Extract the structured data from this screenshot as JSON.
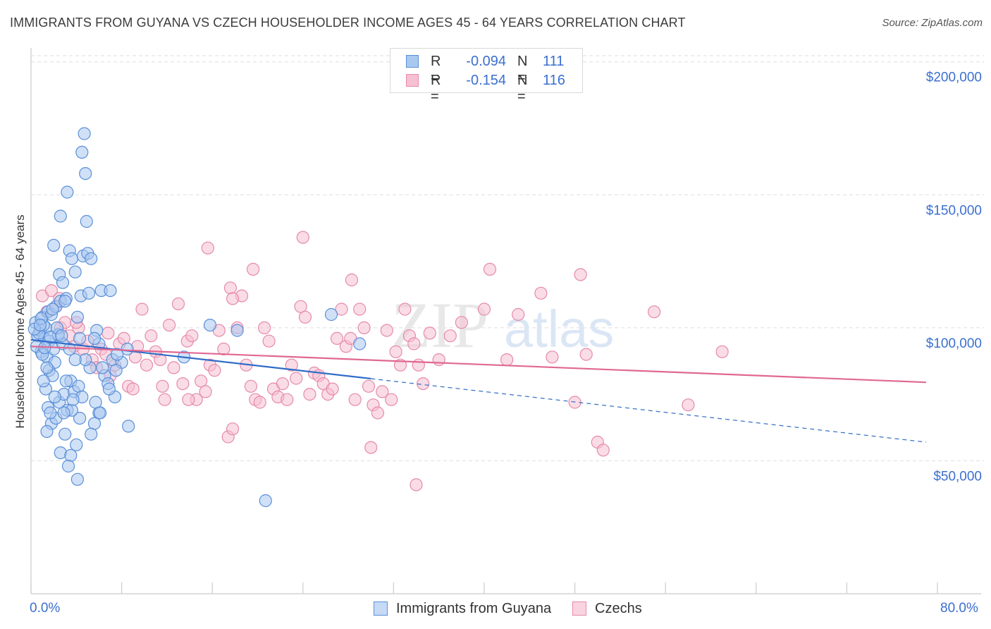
{
  "title": "IMMIGRANTS FROM GUYANA VS CZECH HOUSEHOLDER INCOME AGES 45 - 64 YEARS CORRELATION CHART",
  "source": "Source: ZipAtlas.com",
  "watermark": {
    "zip": "ZIP",
    "atlas": "atlas"
  },
  "legend": {
    "rows": [
      {
        "r_label": "R = ",
        "r_value": "-0.094",
        "n_label": "N = ",
        "n_value": "111"
      },
      {
        "r_label": "R = ",
        "r_value": "-0.154",
        "n_label": "N = ",
        "n_value": "116"
      }
    ]
  },
  "colors": {
    "blue_fill": "#a9c8f0",
    "blue_stroke": "#5b8fd8",
    "blue_line": "#2f6cc7",
    "pink_fill": "#f6bfd2",
    "pink_stroke": "#e58aaa",
    "pink_line": "#e06892",
    "axis_text": "#3b6fcf"
  },
  "chart_data": {
    "type": "scatter",
    "ylabel": "Householder Income Ages 45 - 64 years",
    "xlabel": "",
    "xlim": [
      0,
      80
    ],
    "ylim": [
      0,
      210000
    ],
    "x_tick_labels": {
      "min": "0.0%",
      "max": "80.0%"
    },
    "y_ticks": [
      {
        "value": 50000,
        "label": "$50,000"
      },
      {
        "value": 100000,
        "label": "$100,000"
      },
      {
        "value": 150000,
        "label": "$150,000"
      },
      {
        "value": 200000,
        "label": "$200,000"
      }
    ],
    "series": [
      {
        "name": "Immigrants from Guyana",
        "color_key": "blue",
        "R": -0.094,
        "N": 111,
        "trend": {
          "x_start": 0,
          "y_start": 95500,
          "x_solid_end": 30,
          "x_end": 79,
          "y_end": 57000
        },
        "points": [
          [
            0.4,
            102000
          ],
          [
            0.6,
            97000
          ],
          [
            0.8,
            99000
          ],
          [
            0.9,
            91000
          ],
          [
            1.0,
            104000
          ],
          [
            1.2,
            96000
          ],
          [
            1.3,
            100000
          ],
          [
            1.5,
            106000
          ],
          [
            0.5,
            93000
          ],
          [
            0.7,
            98000
          ],
          [
            1.1,
            101000
          ],
          [
            1.4,
            89000
          ],
          [
            1.6,
            95000
          ],
          [
            1.8,
            105000
          ],
          [
            2.0,
            92000
          ],
          [
            2.2,
            108000
          ],
          [
            2.4,
            97000
          ],
          [
            2.6,
            110000
          ],
          [
            0.3,
            99500
          ],
          [
            0.9,
            103500
          ],
          [
            1.6,
            84000
          ],
          [
            1.9,
            82000
          ],
          [
            2.1,
            87000
          ],
          [
            1.3,
            77000
          ],
          [
            1.5,
            70000
          ],
          [
            1.8,
            64000
          ],
          [
            2.2,
            66000
          ],
          [
            2.5,
            72000
          ],
          [
            2.9,
            75000
          ],
          [
            3.2,
            69000
          ],
          [
            3.5,
            80000
          ],
          [
            3.8,
            76000
          ],
          [
            4.2,
            78000
          ],
          [
            4.5,
            74000
          ],
          [
            2.0,
            131000
          ],
          [
            2.5,
            120000
          ],
          [
            2.8,
            117000
          ],
          [
            3.1,
            111000
          ],
          [
            3.4,
            129000
          ],
          [
            3.6,
            126000
          ],
          [
            3.9,
            121000
          ],
          [
            4.4,
            112000
          ],
          [
            2.6,
            142000
          ],
          [
            3.2,
            151000
          ],
          [
            4.6,
            127000
          ],
          [
            4.9,
            140000
          ],
          [
            4.8,
            158000
          ],
          [
            5.0,
            128000
          ],
          [
            5.3,
            126000
          ],
          [
            4.7,
            173000
          ],
          [
            4.5,
            166000
          ],
          [
            6.2,
            114000
          ],
          [
            7.0,
            114000
          ],
          [
            5.8,
            99000
          ],
          [
            6.0,
            94000
          ],
          [
            5.6,
            96000
          ],
          [
            5.2,
            85000
          ],
          [
            4.8,
            88000
          ],
          [
            6.5,
            82000
          ],
          [
            7.2,
            88000
          ],
          [
            6.8,
            79000
          ],
          [
            6.0,
            68000
          ],
          [
            5.6,
            64000
          ],
          [
            4.3,
            66000
          ],
          [
            3.6,
            69000
          ],
          [
            2.6,
            53000
          ],
          [
            3.0,
            60000
          ],
          [
            4.0,
            56000
          ],
          [
            3.5,
            52000
          ],
          [
            3.3,
            48000
          ],
          [
            4.1,
            43000
          ],
          [
            5.3,
            60000
          ],
          [
            8.5,
            92000
          ],
          [
            8.6,
            63000
          ],
          [
            8.0,
            87000
          ],
          [
            7.5,
            84000
          ],
          [
            7.4,
            74000
          ],
          [
            6.9,
            77000
          ],
          [
            6.1,
            68000
          ],
          [
            5.7,
            72000
          ],
          [
            1.0,
            90000
          ],
          [
            2.8,
            94000
          ],
          [
            3.4,
            92000
          ],
          [
            3.9,
            88000
          ],
          [
            4.1,
            104000
          ],
          [
            2.4,
            97500
          ],
          [
            1.7,
            96500
          ],
          [
            1.2,
            92500
          ],
          [
            0.8,
            101000
          ],
          [
            2.3,
            100000
          ],
          [
            1.9,
            107000
          ],
          [
            3.0,
            110000
          ],
          [
            4.3,
            96000
          ],
          [
            3.7,
            73000
          ],
          [
            2.9,
            68000
          ],
          [
            2.1,
            74000
          ],
          [
            1.7,
            68000
          ],
          [
            1.1,
            80000
          ],
          [
            1.4,
            85000
          ],
          [
            2.7,
            97000
          ],
          [
            3.1,
            80000
          ],
          [
            5.1,
            113000
          ],
          [
            6.3,
            85000
          ],
          [
            7.6,
            90000
          ],
          [
            13.5,
            89000
          ],
          [
            15.8,
            101000
          ],
          [
            18.2,
            99000
          ],
          [
            26.5,
            105000
          ],
          [
            29.0,
            94000
          ],
          [
            20.7,
            35000
          ],
          [
            1.4,
            61000
          ]
        ]
      },
      {
        "name": "Czechs",
        "color_key": "pink",
        "R": -0.154,
        "N": 116,
        "trend": {
          "x_start": 0,
          "y_start": 93000,
          "x_end": 79,
          "y_end": 79500
        },
        "points": [
          [
            1.0,
            112000
          ],
          [
            1.4,
            106000
          ],
          [
            1.8,
            114000
          ],
          [
            2.2,
            108000
          ],
          [
            2.6,
            100000
          ],
          [
            3.0,
            102000
          ],
          [
            3.4,
            97000
          ],
          [
            3.8,
            93000
          ],
          [
            4.2,
            100000
          ],
          [
            4.6,
            92000
          ],
          [
            5.0,
            95000
          ],
          [
            5.4,
            88000
          ],
          [
            5.8,
            85000
          ],
          [
            6.2,
            92000
          ],
          [
            6.6,
            90000
          ],
          [
            7.0,
            82000
          ],
          [
            7.4,
            86000
          ],
          [
            7.8,
            94000
          ],
          [
            8.2,
            96000
          ],
          [
            8.6,
            78000
          ],
          [
            9.0,
            77000
          ],
          [
            9.4,
            93000
          ],
          [
            9.8,
            107000
          ],
          [
            10.2,
            86000
          ],
          [
            10.6,
            97000
          ],
          [
            11.0,
            91000
          ],
          [
            11.4,
            88000
          ],
          [
            11.8,
            73000
          ],
          [
            12.2,
            101000
          ],
          [
            12.6,
            85000
          ],
          [
            13.0,
            109000
          ],
          [
            13.4,
            79000
          ],
          [
            13.8,
            95000
          ],
          [
            14.2,
            97000
          ],
          [
            14.6,
            73000
          ],
          [
            15.0,
            80000
          ],
          [
            15.4,
            76000
          ],
          [
            15.8,
            86000
          ],
          [
            16.2,
            84000
          ],
          [
            16.6,
            99000
          ],
          [
            17.0,
            92000
          ],
          [
            17.4,
            59000
          ],
          [
            17.8,
            62000
          ],
          [
            18.2,
            100000
          ],
          [
            18.6,
            112000
          ],
          [
            19.0,
            86000
          ],
          [
            19.4,
            78000
          ],
          [
            19.8,
            73000
          ],
          [
            20.2,
            72000
          ],
          [
            20.6,
            100000
          ],
          [
            21.0,
            95000
          ],
          [
            21.4,
            77000
          ],
          [
            21.8,
            74000
          ],
          [
            22.2,
            79000
          ],
          [
            22.6,
            73000
          ],
          [
            23.0,
            86000
          ],
          [
            23.4,
            81000
          ],
          [
            23.8,
            108000
          ],
          [
            24.2,
            104000
          ],
          [
            24.6,
            75000
          ],
          [
            25.0,
            83000
          ],
          [
            25.4,
            82000
          ],
          [
            25.8,
            79000
          ],
          [
            26.2,
            75000
          ],
          [
            26.6,
            77000
          ],
          [
            27.0,
            96000
          ],
          [
            27.4,
            107000
          ],
          [
            27.8,
            93000
          ],
          [
            28.2,
            96000
          ],
          [
            28.6,
            73000
          ],
          [
            29.0,
            107000
          ],
          [
            29.4,
            100000
          ],
          [
            29.8,
            78000
          ],
          [
            30.2,
            71000
          ],
          [
            30.6,
            68000
          ],
          [
            31.0,
            76000
          ],
          [
            31.4,
            99000
          ],
          [
            31.8,
            73000
          ],
          [
            32.2,
            91000
          ],
          [
            32.6,
            86000
          ],
          [
            33.0,
            107000
          ],
          [
            33.4,
            97000
          ],
          [
            33.8,
            94000
          ],
          [
            34.2,
            86000
          ],
          [
            34.6,
            79000
          ],
          [
            35.2,
            98000
          ],
          [
            36.0,
            88000
          ],
          [
            37.0,
            97000
          ],
          [
            38.0,
            102000
          ],
          [
            40.0,
            107000
          ],
          [
            42.0,
            88000
          ],
          [
            43.0,
            105000
          ],
          [
            45.0,
            113000
          ],
          [
            46.0,
            89000
          ],
          [
            48.0,
            72000
          ],
          [
            49.0,
            90000
          ],
          [
            50.0,
            57000
          ],
          [
            50.5,
            54000
          ],
          [
            55.0,
            106000
          ],
          [
            58.0,
            71000
          ],
          [
            61.0,
            91000
          ],
          [
            2.5,
            111000
          ],
          [
            4.0,
            102000
          ],
          [
            6.8,
            98000
          ],
          [
            9.2,
            89000
          ],
          [
            11.6,
            78000
          ],
          [
            13.9,
            73000
          ],
          [
            15.6,
            130000
          ],
          [
            17.6,
            115000
          ],
          [
            17.8,
            111000
          ],
          [
            19.6,
            122000
          ],
          [
            24.0,
            134000
          ],
          [
            28.3,
            118000
          ],
          [
            30.0,
            55000
          ],
          [
            34.0,
            41000
          ],
          [
            40.5,
            122000
          ],
          [
            48.5,
            120000
          ]
        ]
      }
    ]
  },
  "bottom_legend": [
    "Immigrants from Guyana",
    "Czechs"
  ]
}
